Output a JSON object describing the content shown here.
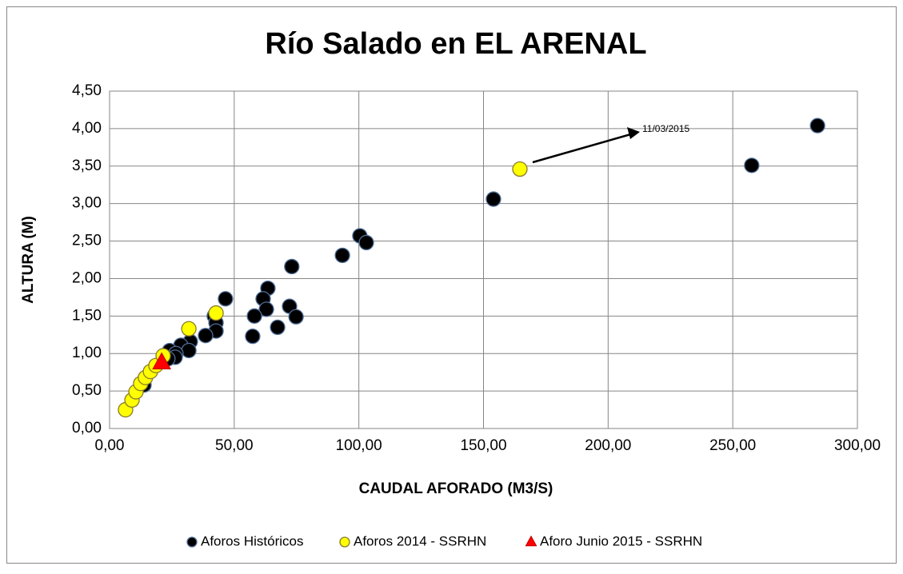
{
  "chart_data": {
    "type": "scatter",
    "title": "Río Salado en EL ARENAL",
    "xlabel": "CAUDAL AFORADO (M3/S)",
    "ylabel": "ALTURA (M)",
    "xlim": [
      0,
      300
    ],
    "ylim": [
      0,
      4.5
    ],
    "xticks": [
      {
        "value": 0,
        "label": "0,00"
      },
      {
        "value": 50,
        "label": "50,00"
      },
      {
        "value": 100,
        "label": "100,00"
      },
      {
        "value": 150,
        "label": "150,00"
      },
      {
        "value": 200,
        "label": "200,00"
      },
      {
        "value": 250,
        "label": "250,00"
      },
      {
        "value": 300,
        "label": "300,00"
      }
    ],
    "yticks": [
      {
        "value": 0,
        "label": "0,00"
      },
      {
        "value": 0.5,
        "label": "0,50"
      },
      {
        "value": 1,
        "label": "1,00"
      },
      {
        "value": 1.5,
        "label": "1,50"
      },
      {
        "value": 2,
        "label": "2,00"
      },
      {
        "value": 2.5,
        "label": "2,50"
      },
      {
        "value": 3,
        "label": "3,00"
      },
      {
        "value": 3.5,
        "label": "3,50"
      },
      {
        "value": 4,
        "label": "4,00"
      },
      {
        "value": 4.5,
        "label": "4,50"
      }
    ],
    "grid": true,
    "legend": "bottom",
    "annotations": [
      "11/03/2015"
    ],
    "series": [
      {
        "name": "Aforos Históricos",
        "color": "#000000",
        "marker": "circle",
        "x": [
          284.0,
          257.6,
          154.0,
          100.4,
          103.0,
          93.4,
          73.1,
          63.5,
          61.6,
          46.5,
          72.2,
          62.9,
          58.1,
          74.8,
          42.0,
          42.7,
          67.4,
          42.7,
          38.5,
          57.4,
          32.4,
          28.6,
          31.8,
          24.1,
          26.6,
          26.3,
          23.4,
          13.8
        ],
        "values": [
          4.04,
          3.51,
          3.06,
          2.57,
          2.48,
          2.31,
          2.16,
          1.87,
          1.73,
          1.73,
          1.63,
          1.59,
          1.5,
          1.49,
          1.5,
          1.41,
          1.35,
          1.3,
          1.24,
          1.23,
          1.16,
          1.11,
          1.04,
          1.04,
          1.0,
          0.95,
          0.93,
          0.58
        ]
      },
      {
        "name": "Aforos 2014 - SSRHN",
        "color": "#ffff00",
        "marker": "circle",
        "x": [
          6.4,
          9.0,
          10.6,
          12.5,
          14.4,
          16.4,
          18.6,
          21.5,
          31.8,
          42.7,
          164.6
        ],
        "values": [
          0.25,
          0.38,
          0.49,
          0.6,
          0.68,
          0.76,
          0.84,
          0.97,
          1.33,
          1.54,
          3.46
        ]
      },
      {
        "name": "Aforo Junio 2015 - SSRHN",
        "color": "#ff0000",
        "marker": "triangle",
        "x": [
          20.9
        ],
        "values": [
          0.88
        ]
      }
    ]
  }
}
